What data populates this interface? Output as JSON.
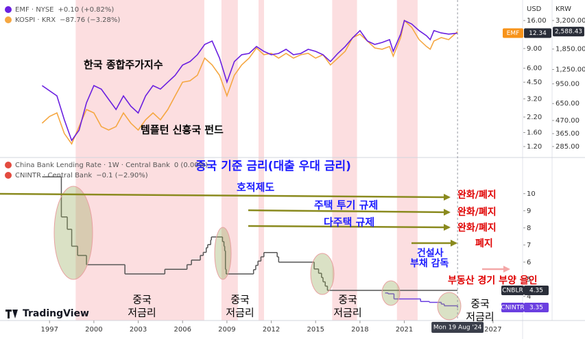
{
  "chart_data": [
    {
      "type": "line",
      "log": true,
      "xlim": [
        1993.65,
        2029.0
      ],
      "ylim": [
        0.985,
        24.4
      ],
      "y2lim": [
        237,
        4743
      ],
      "ylabel": "USD",
      "y2label": "KRW",
      "yticks": [
        {
          "value": 16,
          "label": "16.00"
        },
        {
          "value": 9,
          "label": "9.00"
        },
        {
          "value": 6,
          "label": "6.00"
        },
        {
          "value": 4.5,
          "label": "4.50"
        },
        {
          "value": 3.2,
          "label": "3.20"
        },
        {
          "value": 2.2,
          "label": "2.20"
        },
        {
          "value": 1.6,
          "label": "1.60"
        },
        {
          "value": 1.2,
          "label": "1.20"
        }
      ],
      "y2ticks": [
        {
          "value": 3200,
          "label": "3,200.00"
        },
        {
          "value": 1850,
          "label": "1,850.00"
        },
        {
          "value": 1250,
          "label": "1,250.00"
        },
        {
          "value": 950,
          "label": "950.00"
        },
        {
          "value": 650,
          "label": "650.00"
        },
        {
          "value": 470,
          "label": "470.00"
        },
        {
          "value": 365,
          "label": "365.00"
        },
        {
          "value": 285,
          "label": "285.00"
        }
      ],
      "highlight_color": "#fbd3d6",
      "highlight_periods": [
        [
          1998.77,
          2007.47
        ],
        [
          2008.63,
          2009.74
        ],
        [
          2011.14,
          2011.51
        ],
        [
          2016.12,
          2017.8
        ],
        [
          2020.5,
          2021.9
        ]
      ],
      "cursor_label": "Mon 19 Aug '24",
      "annotations": [
        "한국 종합주가지수",
        "템플턴 신흥국 펀드"
      ],
      "series": [
        {
          "name": "EMF · NYSE",
          "change": "+0.10 (+0.82%)",
          "badge": "EMF",
          "color": "#6a1fe0",
          "x": [
            1996.5,
            1997.5,
            1998,
            1998.5,
            1999,
            1999.5,
            2000,
            2000.5,
            2001,
            2001.5,
            2002,
            2002.5,
            2003,
            2003.5,
            2004,
            2004.5,
            2005,
            2005.5,
            2006,
            2006.5,
            2007,
            2007.5,
            2008,
            2008.5,
            2009,
            2009.5,
            2010,
            2010.5,
            2011,
            2011.5,
            2012,
            2012.5,
            2013,
            2013.5,
            2014,
            2014.5,
            2015,
            2015.5,
            2016,
            2016.5,
            2017,
            2017.5,
            2018,
            2018.5,
            2019,
            2019.5,
            2020,
            2020.25,
            2020.75,
            2021,
            2021.5,
            2022,
            2022.5,
            2022.75,
            2023,
            2023.5,
            2024,
            2024.6
          ],
          "values": [
            4.2,
            3.4,
            2.08,
            1.36,
            1.68,
            2.95,
            4.2,
            3.91,
            3.17,
            2.57,
            3.4,
            2.75,
            2.39,
            3.4,
            4.2,
            3.91,
            4.51,
            5.19,
            6.41,
            6.88,
            7.92,
            9.78,
            10.5,
            7.39,
            4.51,
            6.88,
            7.92,
            8.14,
            9.38,
            8.49,
            7.92,
            8.14,
            8.86,
            7.92,
            8.14,
            8.86,
            8.49,
            7.92,
            6.88,
            8.14,
            9.38,
            11.2,
            13.0,
            10.5,
            9.78,
            10.2,
            10.8,
            8.49,
            12.1,
            16.0,
            14.9,
            13.0,
            11.7,
            10.8,
            13.0,
            12.4,
            12.1,
            12.34
          ]
        },
        {
          "name": "KOSPI · KRX",
          "change": "−87.76 (−3.28%)",
          "color": "#f5a742",
          "axis": "y2",
          "last_value_label": "2,588.43",
          "x": [
            1996.5,
            1997,
            1997.5,
            1998,
            1998.5,
            1999,
            1999.5,
            2000,
            2000.5,
            2001,
            2001.5,
            2002,
            2002.5,
            2003,
            2003.5,
            2004,
            2004.5,
            2005,
            2005.5,
            2006,
            2006.5,
            2007,
            2007.5,
            2008,
            2008.5,
            2009,
            2009.5,
            2010,
            2010.5,
            2011,
            2011.5,
            2012,
            2012.5,
            2013,
            2013.5,
            2014,
            2014.5,
            2015,
            2015.5,
            2016,
            2016.5,
            2017,
            2017.5,
            2018,
            2018.5,
            2019,
            2019.5,
            2020,
            2020.25,
            2020.75,
            2021,
            2021.5,
            2022,
            2022.5,
            2022.75,
            2023,
            2023.5,
            2024,
            2024.6
          ],
          "values": [
            446,
            508,
            543,
            366,
            300,
            418,
            580,
            543,
            418,
            391,
            418,
            543,
            446,
            391,
            476,
            543,
            476,
            580,
            754,
            980,
            1006,
            1119,
            1554,
            1364,
            1119,
            754,
            1119,
            1364,
            1554,
            1891,
            1659,
            1703,
            1554,
            1703,
            1554,
            1659,
            1703,
            1554,
            1659,
            1364,
            1554,
            1772,
            2305,
            2463,
            2158,
            1891,
            1843,
            1943,
            1617,
            2305,
            3200,
            2807,
            2215,
            1943,
            1843,
            2158,
            2305,
            2215,
            2588.43
          ]
        }
      ]
    },
    {
      "type": "step",
      "xlim": [
        1993.65,
        2029.0
      ],
      "ylim": [
        2.71,
        11.91
      ],
      "yticks": [
        10,
        9,
        8,
        7,
        6,
        5,
        4
      ],
      "xticks": [
        1997,
        2000,
        2003,
        2006,
        2009,
        2012,
        2015,
        2018,
        2021,
        2027
      ],
      "brand": "TradingView",
      "annotations": [
        "중국 기준 금리(대출 우대 금리)",
        "호적제도",
        "주택 투기 규제",
        "다주택 규제",
        "완화/폐지",
        "완화/폐지",
        "완화/폐지",
        "폐지",
        [
          "건설사",
          "부채 감독"
        ],
        "부동산 경기 부양 올인",
        [
          "중국",
          "저금리"
        ],
        [
          "중국",
          "저금리"
        ],
        [
          "중국",
          "저금리"
        ],
        [
          "중국",
          "저금리"
        ]
      ],
      "series": [
        {
          "name": "China Bank Lending Rate · 1W · Central Bank",
          "change": "0 (0.00%)",
          "badge": "CNBLR",
          "color": "#555555",
          "x": [
            1996.5,
            1997.8,
            1998.2,
            1998.5,
            1998.9,
            1999.5,
            2002.1,
            2004.8,
            2006.3,
            2006.6,
            2007.2,
            2007.4,
            2007.6,
            2007.7,
            2007.9,
            2007.95,
            2008.7,
            2008.8,
            2008.85,
            2008.9,
            2008.95,
            2010.8,
            2010.95,
            2011.1,
            2011.3,
            2011.5,
            2012.4,
            2012.5,
            2014.9,
            2015.2,
            2015.4,
            2015.5,
            2015.65,
            2015.8,
            2024.6
          ],
          "values": [
            10.98,
            8.64,
            7.92,
            6.93,
            6.39,
            5.85,
            5.31,
            5.58,
            5.85,
            6.12,
            6.39,
            6.57,
            6.84,
            7.02,
            7.29,
            7.47,
            7.2,
            6.93,
            6.66,
            5.58,
            5.31,
            5.56,
            5.81,
            6.06,
            6.31,
            6.56,
            6.31,
            6.0,
            5.6,
            5.35,
            5.1,
            4.85,
            4.6,
            4.35,
            4.35
          ]
        },
        {
          "name": "CNINTR · Central Bank",
          "change": "−0.1 (−2.90%)",
          "badge": "CNINTR",
          "color": "#6a3fe0",
          "x": [
            2019.7,
            2019.9,
            2020.3,
            2022.1,
            2022.7,
            2023.5,
            2023.7,
            2024.6
          ],
          "values": [
            4.2,
            4.15,
            3.85,
            3.7,
            3.65,
            3.55,
            3.45,
            3.35
          ]
        }
      ]
    }
  ]
}
